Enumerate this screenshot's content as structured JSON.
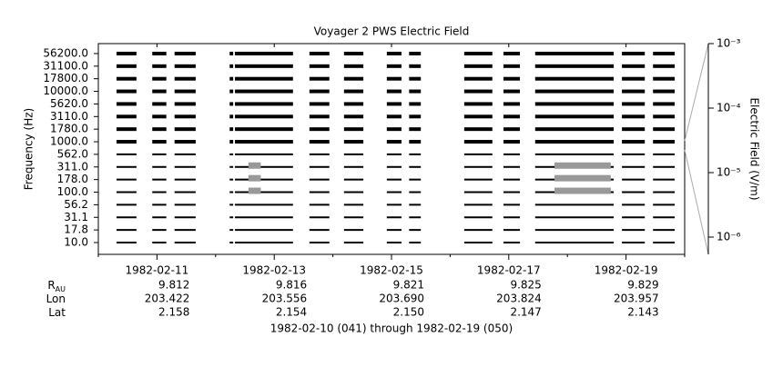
{
  "chart_data": {
    "type": "strip",
    "title": "Voyager 2 PWS Electric Field",
    "ylabel": "Frequency (Hz)",
    "y2label": "Electric Field (V/m)",
    "footer": "1982-02-10 (041) through 1982-02-19 (050)",
    "channels": [
      "10.0",
      "17.8",
      "31.1",
      "56.2",
      "100.0",
      "178.0",
      "311.0",
      "562.0",
      "1000.0",
      "1780.0",
      "3110.0",
      "5620.0",
      "10000.0",
      "17800.0",
      "31100.0",
      "56200.0"
    ],
    "xlim": [
      41,
      51
    ],
    "xticks": [
      {
        "value": 42,
        "label": "1982-02-11"
      },
      {
        "value": 44,
        "label": "1982-02-13"
      },
      {
        "value": 46,
        "label": "1982-02-15"
      },
      {
        "value": 48,
        "label": "1982-02-17"
      },
      {
        "value": 50,
        "label": "1982-02-19"
      }
    ],
    "xminorticks": [
      41,
      43,
      45,
      47,
      49,
      51
    ],
    "color": "#000000",
    "segments": [
      {
        "start": 41.31,
        "end": 41.65
      },
      {
        "start": 41.92,
        "end": 42.16
      },
      {
        "start": 42.3,
        "end": 42.66
      },
      {
        "start": 43.24,
        "end": 43.3
      },
      {
        "start": 43.33,
        "end": 44.32
      },
      {
        "start": 44.6,
        "end": 44.94
      },
      {
        "start": 45.19,
        "end": 45.52
      },
      {
        "start": 45.92,
        "end": 46.17
      },
      {
        "start": 46.3,
        "end": 46.5
      },
      {
        "start": 47.24,
        "end": 47.72
      },
      {
        "start": 47.91,
        "end": 48.19
      },
      {
        "start": 48.45,
        "end": 49.79
      },
      {
        "start": 49.93,
        "end": 50.32
      },
      {
        "start": 50.46,
        "end": 50.83
      }
    ],
    "highlight_color": "#999999",
    "highlights": [
      {
        "channel": 4,
        "start": 43.56,
        "end": 43.77
      },
      {
        "channel": 5,
        "start": 43.56,
        "end": 43.77
      },
      {
        "channel": 6,
        "start": 43.56,
        "end": 43.77
      },
      {
        "channel": 4,
        "start": 48.78,
        "end": 49.74
      },
      {
        "channel": 5,
        "start": 48.78,
        "end": 49.74
      },
      {
        "channel": 6,
        "start": 48.78,
        "end": 49.74
      }
    ],
    "y2lim": [
      5.4e-07,
      0.001
    ],
    "y2ticks": [
      {
        "value": 0.001,
        "label": "10⁻³"
      },
      {
        "value": 0.0001,
        "label": "10⁻⁴"
      },
      {
        "value": 1e-05,
        "label": "10⁻⁵"
      },
      {
        "value": 1e-06,
        "label": "10⁻⁶"
      }
    ],
    "y2log": true,
    "ephemeris": [
      {
        "label": "R",
        "sub": "AU",
        "values": [
          "9.812",
          "9.816",
          "9.821",
          "9.825",
          "9.829"
        ]
      },
      {
        "label": "Lon",
        "values": [
          "203.422",
          "203.556",
          "203.690",
          "203.824",
          "203.957"
        ]
      },
      {
        "label": "Lat",
        "values": [
          "2.158",
          "2.154",
          "2.150",
          "2.147",
          "2.143"
        ]
      }
    ]
  }
}
